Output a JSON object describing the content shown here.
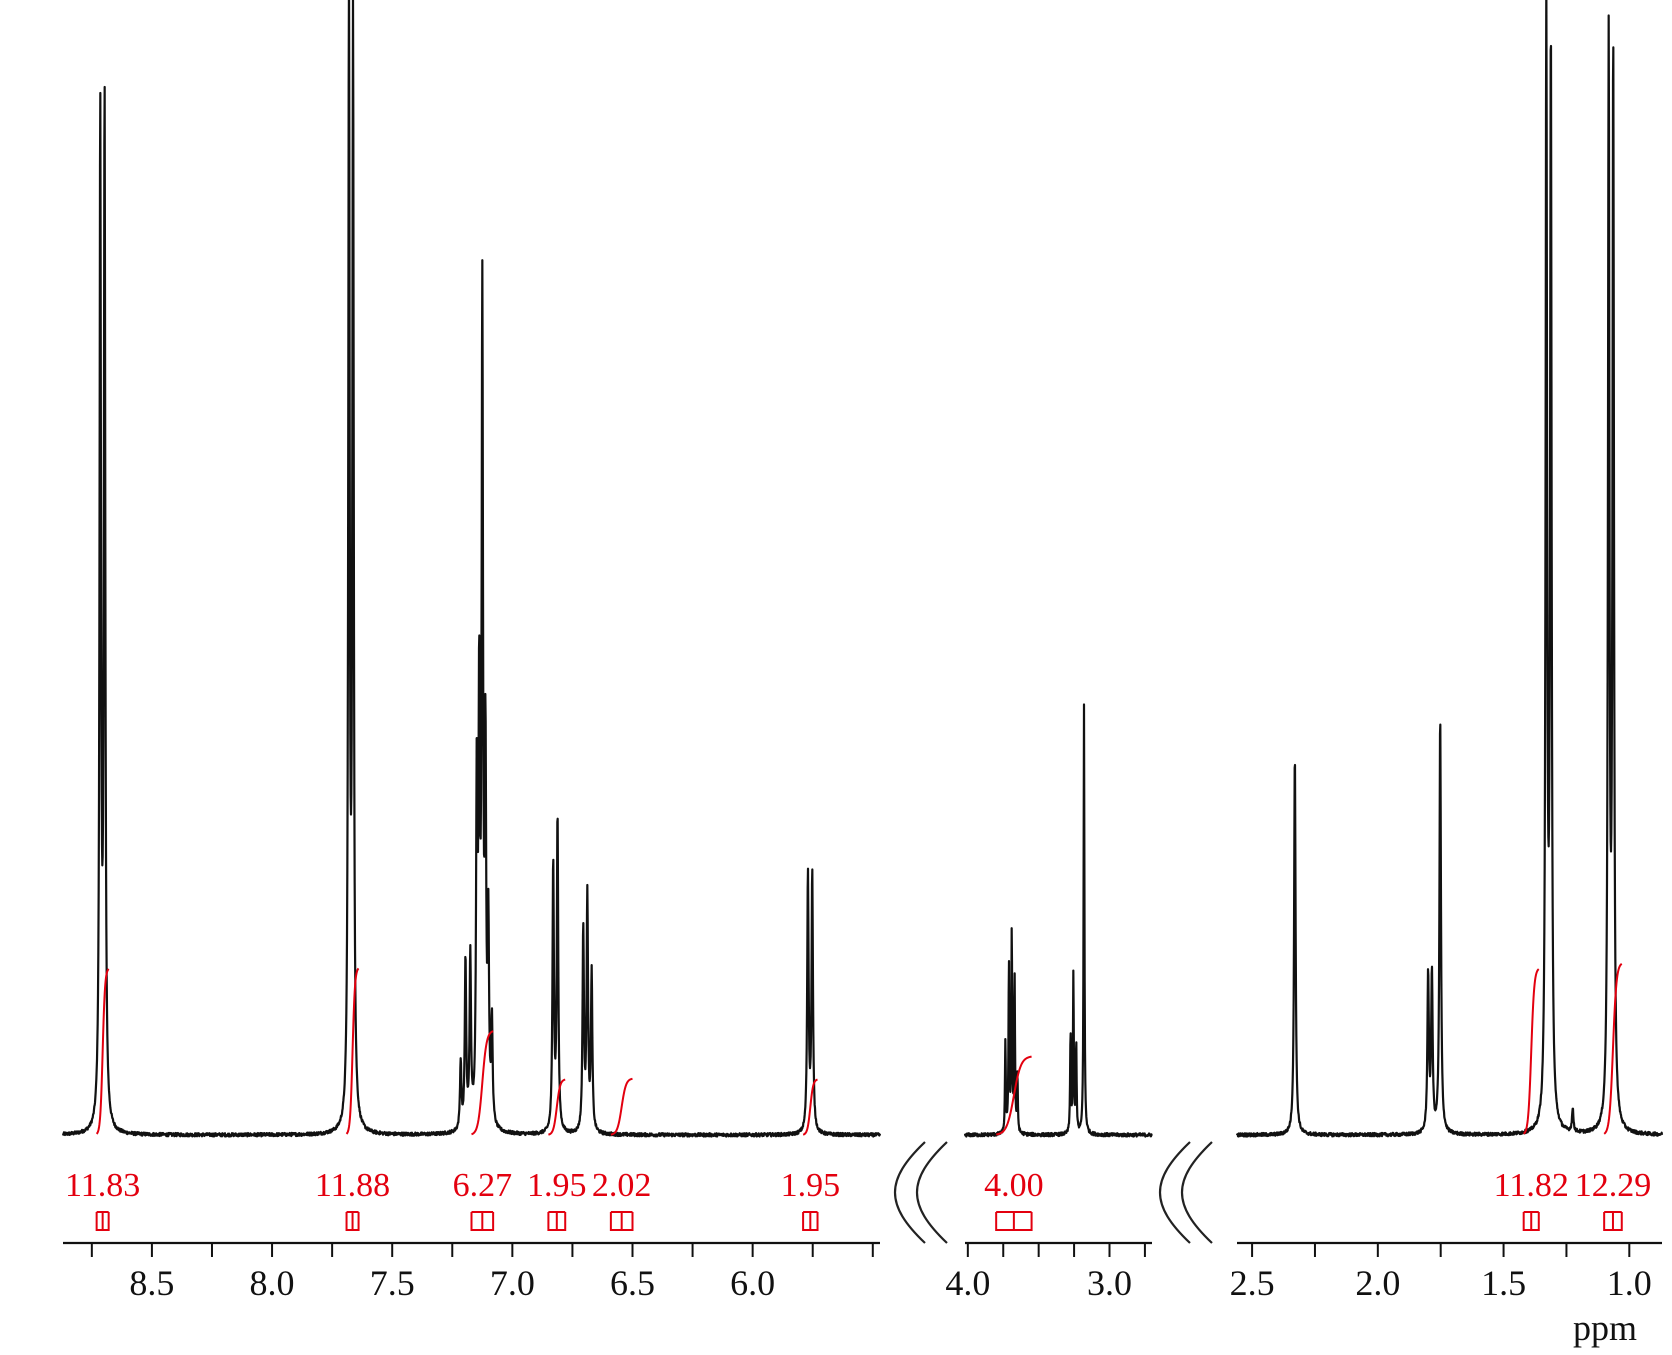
{
  "chart_data": {
    "type": "line",
    "xlabel": "ppm",
    "axis_reversed": true,
    "colors": {
      "spectrum": "#111111",
      "integral": "#e3000f",
      "axis": "#111111"
    },
    "segments": [
      {
        "id": "aromatic",
        "xlim": [
          8.87,
          5.47
        ],
        "ticks": [
          8.5,
          8.0,
          7.5,
          7.0,
          6.5,
          6.0
        ],
        "tick_labels": [
          "8.5",
          "8.0",
          "7.5",
          "7.0",
          "6.5",
          "6.0"
        ],
        "peaks": [
          {
            "ppm": 8.715,
            "height": 0.9
          },
          {
            "ppm": 8.697,
            "height": 0.91
          },
          {
            "ppm": 7.68,
            "height": 1.0
          },
          {
            "ppm": 7.663,
            "height": 0.97
          },
          {
            "ppm": 7.215,
            "height": 0.06
          },
          {
            "ppm": 7.195,
            "height": 0.15
          },
          {
            "ppm": 7.175,
            "height": 0.15
          },
          {
            "ppm": 7.148,
            "height": 0.3
          },
          {
            "ppm": 7.138,
            "height": 0.36
          },
          {
            "ppm": 7.125,
            "height": 0.72
          },
          {
            "ppm": 7.112,
            "height": 0.32
          },
          {
            "ppm": 7.1,
            "height": 0.17
          },
          {
            "ppm": 7.085,
            "height": 0.09
          },
          {
            "ppm": 6.83,
            "height": 0.24
          },
          {
            "ppm": 6.812,
            "height": 0.28
          },
          {
            "ppm": 6.705,
            "height": 0.18
          },
          {
            "ppm": 6.688,
            "height": 0.21
          },
          {
            "ppm": 6.67,
            "height": 0.14
          },
          {
            "ppm": 5.77,
            "height": 0.23
          },
          {
            "ppm": 5.752,
            "height": 0.23
          }
        ],
        "integrals": [
          {
            "value": "11.83",
            "from": 8.73,
            "to": 8.68
          },
          {
            "value": "11.88",
            "from": 7.69,
            "to": 7.64
          },
          {
            "value": "6.27",
            "from": 7.17,
            "to": 7.08
          },
          {
            "value": "1.95",
            "from": 6.85,
            "to": 6.78
          },
          {
            "value": "2.02",
            "from": 6.59,
            "to": 6.5
          },
          {
            "value": "1.95",
            "from": 5.79,
            "to": 5.73
          }
        ]
      },
      {
        "id": "mid",
        "xlim": [
          4.02,
          2.7
        ],
        "ticks": [
          4.0,
          3.0
        ],
        "tick_labels": [
          "4.0",
          "3.0"
        ],
        "peaks": [
          {
            "ppm": 3.735,
            "height": 0.08
          },
          {
            "ppm": 3.71,
            "height": 0.15
          },
          {
            "ppm": 3.69,
            "height": 0.18
          },
          {
            "ppm": 3.67,
            "height": 0.14
          },
          {
            "ppm": 3.65,
            "height": 0.05
          },
          {
            "ppm": 3.275,
            "height": 0.09
          },
          {
            "ppm": 3.255,
            "height": 0.14
          },
          {
            "ppm": 3.235,
            "height": 0.08
          },
          {
            "ppm": 3.18,
            "height": 0.38
          }
        ],
        "integrals": [
          {
            "value": "4.00",
            "from": 3.8,
            "to": 3.55
          }
        ]
      },
      {
        "id": "aliphatic",
        "xlim": [
          2.56,
          0.87
        ],
        "ticks": [
          2.5,
          2.0,
          1.5,
          1.0
        ],
        "tick_labels": [
          "2.5",
          "2.0",
          "1.5",
          "1.0"
        ],
        "peaks": [
          {
            "ppm": 2.33,
            "height": 0.34
          },
          {
            "ppm": 1.8,
            "height": 0.14
          },
          {
            "ppm": 1.785,
            "height": 0.14
          },
          {
            "ppm": 1.752,
            "height": 0.37
          },
          {
            "ppm": 1.33,
            "height": 0.99
          },
          {
            "ppm": 1.312,
            "height": 0.96
          },
          {
            "ppm": 1.225,
            "height": 0.02
          },
          {
            "ppm": 1.082,
            "height": 0.96
          },
          {
            "ppm": 1.064,
            "height": 0.95
          }
        ],
        "integrals": [
          {
            "value": "11.82",
            "from": 1.42,
            "to": 1.36
          },
          {
            "value": "12.29",
            "from": 1.1,
            "to": 1.03
          }
        ]
      }
    ]
  }
}
